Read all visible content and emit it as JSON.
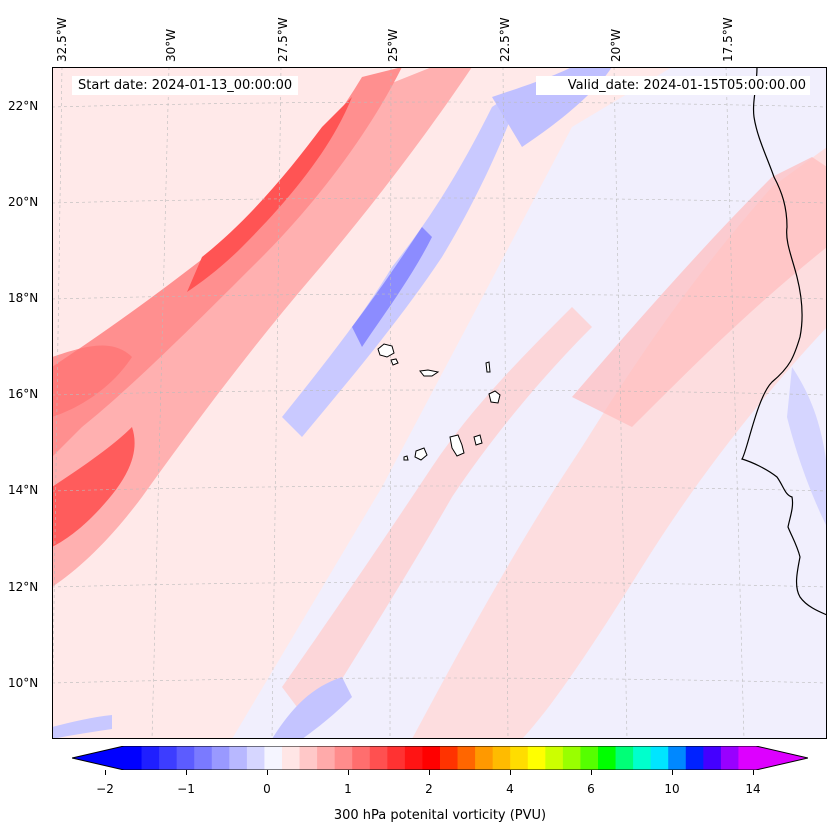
{
  "map": {
    "start_text": "Start date: 2024-01-13_00:00:00",
    "valid_text": "Valid_date: 2024-01-15T05:00:00.00",
    "lon_labels": [
      "32.5°W",
      "30°W",
      "27.5°W",
      "25°W",
      "22.5°W",
      "20°W",
      "17.5°W"
    ],
    "lat_labels": [
      "22°N",
      "20°N",
      "18°N",
      "16°N",
      "14°N",
      "12°N",
      "10°N"
    ],
    "extent": {
      "lon_min": -33.0,
      "lon_max": -15.6,
      "lat_min": 8.9,
      "lat_max": 22.8
    },
    "ocean_color": "#ffffff",
    "coastline_color": "#000000",
    "gridlines": true
  },
  "colorbar": {
    "label": "300 hPa potenital vorticity (PVU)",
    "tick_labels": [
      "−2",
      "−1",
      "0",
      "1",
      "2",
      "4",
      "6",
      "10",
      "14"
    ],
    "extend": "both",
    "colors": [
      "#0000ff",
      "#1f1fff",
      "#3d3dff",
      "#5c5cff",
      "#7a7aff",
      "#9999ff",
      "#b8b8ff",
      "#d6d6ff",
      "#f5f5ff",
      "#ffe6e6",
      "#ffc8c8",
      "#ffaaaa",
      "#ff8c8c",
      "#ff6e6e",
      "#ff5050",
      "#ff3232",
      "#ff1414",
      "#ff0000",
      "#ff3300",
      "#ff6600",
      "#ff9900",
      "#ffbb00",
      "#ffdd00",
      "#ffff00",
      "#ccff00",
      "#99ff00",
      "#55ff00",
      "#00ff00",
      "#00ff77",
      "#00ffcc",
      "#00e5ff",
      "#0088ff",
      "#0022ff",
      "#4400ff",
      "#9900ff",
      "#dd00ff"
    ],
    "under_color": "#0000ff",
    "over_color": "#dd00ff"
  }
}
